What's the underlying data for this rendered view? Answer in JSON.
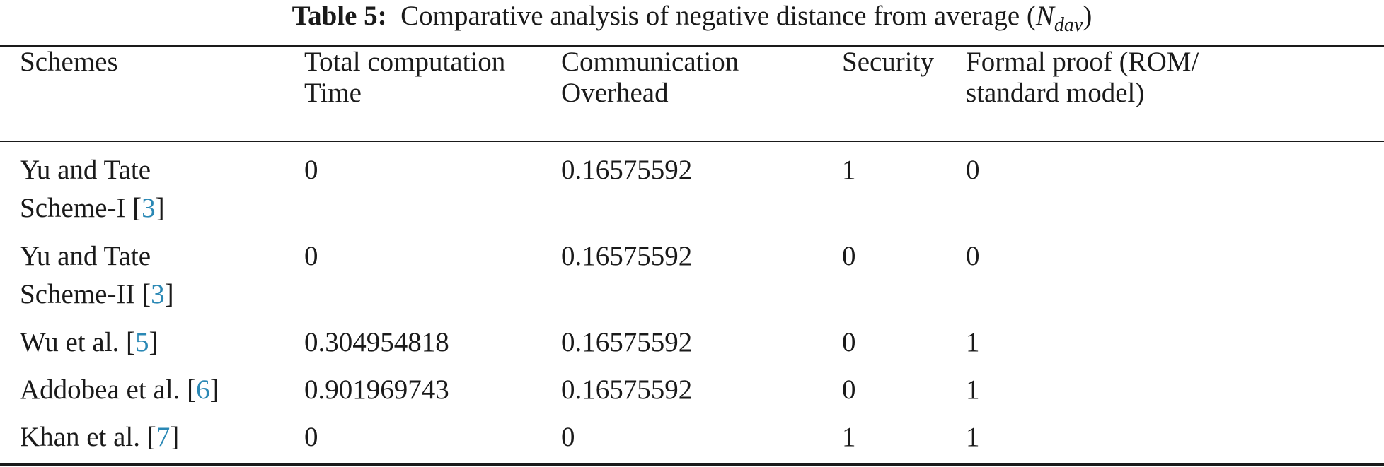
{
  "caption": {
    "label": "Table 5:",
    "text": "Comparative analysis of negative distance from average (",
    "math_main": "N",
    "math_sub": "dav",
    "close": ")"
  },
  "table": {
    "headers": [
      {
        "line1": "Schemes",
        "line2": ""
      },
      {
        "line1": "Total computation",
        "line2": "Time"
      },
      {
        "line1": "Communication",
        "line2": "Overhead"
      },
      {
        "line1": "Security",
        "line2": ""
      },
      {
        "line1": "Formal proof (ROM/",
        "line2": "standard model)"
      }
    ],
    "rows": [
      {
        "scheme_line1": "Yu and Tate",
        "scheme_line2": "Scheme-I [",
        "cite": "3",
        "cite_close": "]",
        "computation": "0",
        "communication": "0.16575592",
        "security": "1",
        "formal_proof": "0"
      },
      {
        "scheme_line1": "Yu and Tate",
        "scheme_line2": "Scheme-II [",
        "cite": "3",
        "cite_close": "]",
        "computation": "0",
        "communication": "0.16575592",
        "security": "0",
        "formal_proof": "0"
      },
      {
        "scheme_line1": "Wu et al. [",
        "cite": "5",
        "cite_close": "]",
        "computation": "0.304954818",
        "communication": "0.16575592",
        "security": "0",
        "formal_proof": "1"
      },
      {
        "scheme_line1": "Addobea et al. [",
        "cite": "6",
        "cite_close": "]",
        "computation": "0.901969743",
        "communication": "0.16575592",
        "security": "0",
        "formal_proof": "1"
      },
      {
        "scheme_line1": "Khan et al. [",
        "cite": "7",
        "cite_close": "]",
        "computation": "0",
        "communication": "0",
        "security": "1",
        "formal_proof": "1"
      }
    ]
  },
  "colors": {
    "text": "#1a1a1a",
    "citation_link": "#2a88b5",
    "rule": "#1a1a1a"
  }
}
